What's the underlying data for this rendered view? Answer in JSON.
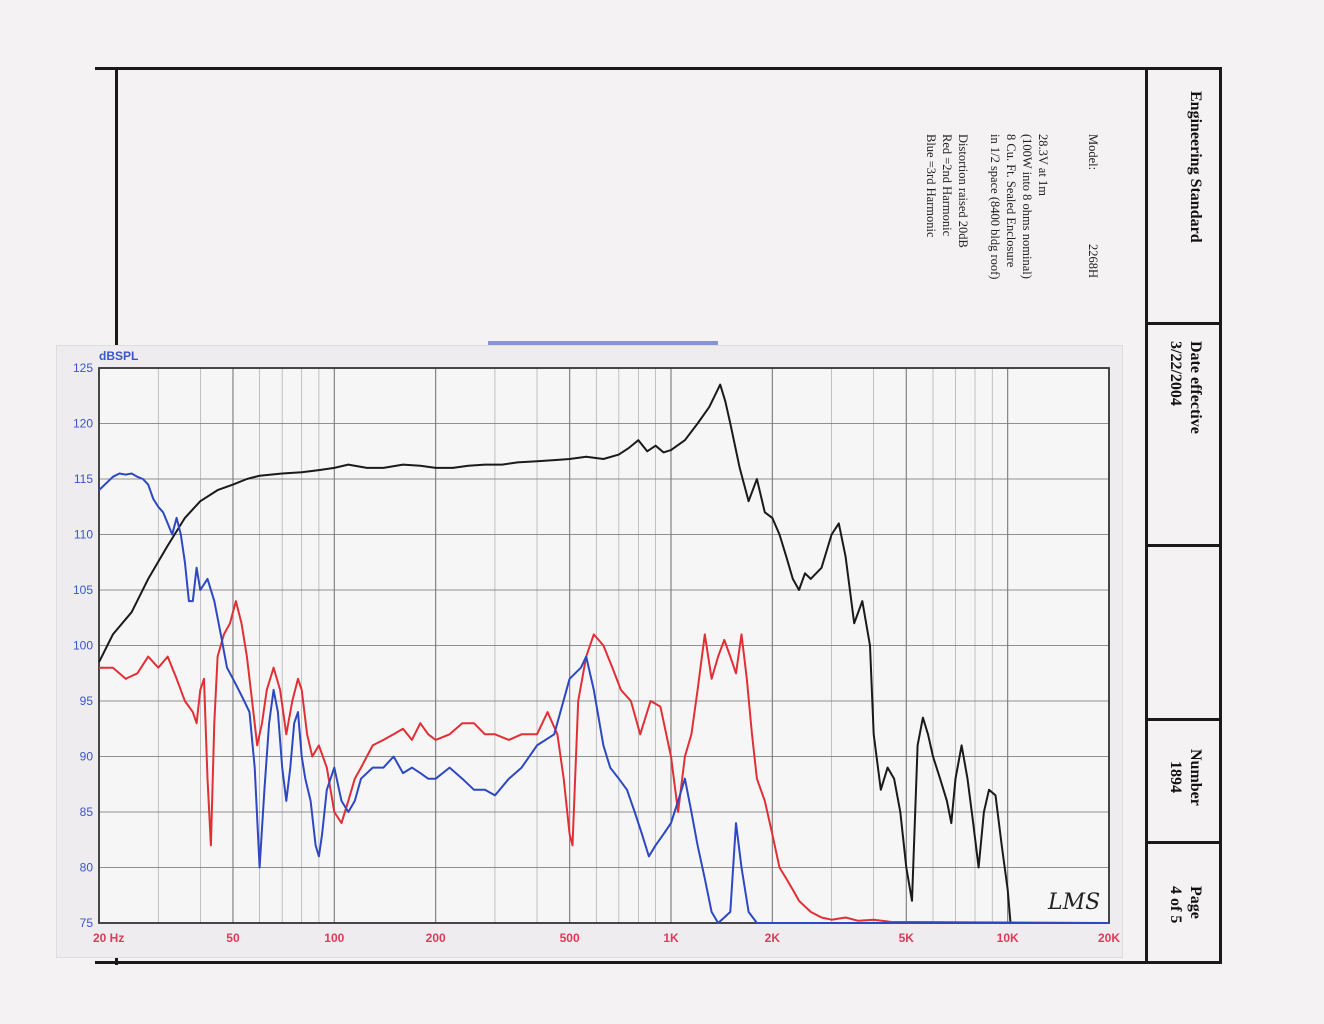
{
  "title_block": {
    "doc_type": "Engineering Standard",
    "date_label": "Date effective",
    "date_value": "3/22/2004",
    "number_label": "Number",
    "number_value": "1894",
    "page_label": "Page",
    "page_value": "4 of 5"
  },
  "notes": {
    "model_label": "Model:",
    "model_value": "2268H",
    "line1": "28.3V at 1m",
    "line2": "(100W into 8 ohms nominal)",
    "line3": "8 Cu. Ft. Sealed Enclosure",
    "line4": "in 1/2 space (8400 bldg roof)",
    "distortion": "Distortion raised 20dB",
    "red_legend": "Red =2nd Harmonic",
    "blue_legend": "Blue =3rd Harmonic"
  },
  "signature_text": "LMS",
  "colors": {
    "fundamental": "#1a1a1a",
    "second_harmonic": "#e03035",
    "third_harmonic": "#2d48c0",
    "axis_text": "#3a56c9",
    "grid": "#777777"
  },
  "chart_data": {
    "type": "line",
    "title": "",
    "ylabel": "dBSPL",
    "xlabel": "",
    "xscale": "log",
    "xlim": [
      20,
      20000
    ],
    "ylim": [
      75,
      125
    ],
    "x_tick_labels": [
      {
        "f": 20,
        "label": "20  Hz"
      },
      {
        "f": 50,
        "label": "50"
      },
      {
        "f": 100,
        "label": "100"
      },
      {
        "f": 200,
        "label": "200"
      },
      {
        "f": 500,
        "label": "500"
      },
      {
        "f": 1000,
        "label": "1K"
      },
      {
        "f": 2000,
        "label": "2K"
      },
      {
        "f": 5000,
        "label": "5K"
      },
      {
        "f": 10000,
        "label": "10K"
      },
      {
        "f": 20000,
        "label": "20K"
      }
    ],
    "y_ticks": [
      75,
      80,
      85,
      90,
      95,
      100,
      105,
      110,
      115,
      120,
      125
    ],
    "grid": true,
    "series": [
      {
        "key": "fundamental",
        "points": [
          [
            20,
            98.5
          ],
          [
            22,
            101
          ],
          [
            25,
            103
          ],
          [
            28,
            106
          ],
          [
            32,
            109
          ],
          [
            36,
            111.5
          ],
          [
            40,
            113
          ],
          [
            45,
            114
          ],
          [
            50,
            114.5
          ],
          [
            55,
            115
          ],
          [
            60,
            115.3
          ],
          [
            70,
            115.5
          ],
          [
            80,
            115.6
          ],
          [
            90,
            115.8
          ],
          [
            100,
            116
          ],
          [
            110,
            116.3
          ],
          [
            125,
            116
          ],
          [
            140,
            116
          ],
          [
            160,
            116.3
          ],
          [
            180,
            116.2
          ],
          [
            200,
            116
          ],
          [
            225,
            116
          ],
          [
            250,
            116.2
          ],
          [
            280,
            116.3
          ],
          [
            315,
            116.3
          ],
          [
            350,
            116.5
          ],
          [
            400,
            116.6
          ],
          [
            450,
            116.7
          ],
          [
            500,
            116.8
          ],
          [
            560,
            117
          ],
          [
            630,
            116.8
          ],
          [
            700,
            117.2
          ],
          [
            750,
            117.8
          ],
          [
            800,
            118.5
          ],
          [
            850,
            117.5
          ],
          [
            900,
            118
          ],
          [
            950,
            117.4
          ],
          [
            1000,
            117.6
          ],
          [
            1100,
            118.5
          ],
          [
            1200,
            120
          ],
          [
            1300,
            121.5
          ],
          [
            1400,
            123.5
          ],
          [
            1450,
            122
          ],
          [
            1500,
            120
          ],
          [
            1600,
            116
          ],
          [
            1700,
            113
          ],
          [
            1800,
            115
          ],
          [
            1900,
            112
          ],
          [
            2000,
            111.5
          ],
          [
            2100,
            110
          ],
          [
            2200,
            108
          ],
          [
            2300,
            106
          ],
          [
            2400,
            105
          ],
          [
            2500,
            106.5
          ],
          [
            2600,
            106
          ],
          [
            2800,
            107
          ],
          [
            3000,
            110
          ],
          [
            3150,
            111
          ],
          [
            3300,
            108
          ],
          [
            3500,
            102
          ],
          [
            3700,
            104
          ],
          [
            3900,
            100
          ],
          [
            4000,
            92
          ],
          [
            4200,
            87
          ],
          [
            4400,
            89
          ],
          [
            4600,
            88
          ],
          [
            4800,
            85
          ],
          [
            5000,
            80
          ],
          [
            5200,
            77
          ],
          [
            5400,
            91
          ],
          [
            5600,
            93.5
          ],
          [
            5800,
            92
          ],
          [
            6000,
            90
          ],
          [
            6300,
            88
          ],
          [
            6600,
            86
          ],
          [
            6800,
            84
          ],
          [
            7000,
            88
          ],
          [
            7300,
            91
          ],
          [
            7600,
            88
          ],
          [
            7900,
            84
          ],
          [
            8200,
            80
          ],
          [
            8500,
            85
          ],
          [
            8800,
            87
          ],
          [
            9200,
            86.5
          ],
          [
            9600,
            82
          ],
          [
            10000,
            78
          ],
          [
            10200,
            75
          ]
        ]
      },
      {
        "key": "second_harmonic",
        "points": [
          [
            20,
            98
          ],
          [
            22,
            98
          ],
          [
            24,
            97
          ],
          [
            26,
            97.5
          ],
          [
            28,
            99
          ],
          [
            30,
            98
          ],
          [
            32,
            99
          ],
          [
            34,
            97
          ],
          [
            36,
            95
          ],
          [
            38,
            94
          ],
          [
            39,
            93
          ],
          [
            40,
            96
          ],
          [
            41,
            97
          ],
          [
            42,
            88
          ],
          [
            43,
            82
          ],
          [
            44,
            93
          ],
          [
            45,
            99
          ],
          [
            47,
            101
          ],
          [
            49,
            102
          ],
          [
            51,
            104
          ],
          [
            53,
            102
          ],
          [
            55,
            99
          ],
          [
            57,
            95
          ],
          [
            59,
            91
          ],
          [
            61,
            93
          ],
          [
            63,
            96
          ],
          [
            66,
            98
          ],
          [
            69,
            96
          ],
          [
            72,
            92
          ],
          [
            75,
            95
          ],
          [
            78,
            97
          ],
          [
            80,
            96
          ],
          [
            83,
            92
          ],
          [
            86,
            90
          ],
          [
            90,
            91
          ],
          [
            95,
            89
          ],
          [
            100,
            85
          ],
          [
            105,
            84
          ],
          [
            110,
            86
          ],
          [
            115,
            88
          ],
          [
            120,
            89
          ],
          [
            130,
            91
          ],
          [
            140,
            91.5
          ],
          [
            150,
            92
          ],
          [
            160,
            92.5
          ],
          [
            170,
            91.5
          ],
          [
            180,
            93
          ],
          [
            190,
            92
          ],
          [
            200,
            91.5
          ],
          [
            220,
            92
          ],
          [
            240,
            93
          ],
          [
            260,
            93
          ],
          [
            280,
            92
          ],
          [
            300,
            92
          ],
          [
            330,
            91.5
          ],
          [
            360,
            92
          ],
          [
            400,
            92
          ],
          [
            430,
            94
          ],
          [
            460,
            92
          ],
          [
            480,
            88
          ],
          [
            500,
            83
          ],
          [
            510,
            82
          ],
          [
            530,
            95
          ],
          [
            560,
            99
          ],
          [
            590,
            101
          ],
          [
            630,
            100
          ],
          [
            670,
            98
          ],
          [
            710,
            96
          ],
          [
            760,
            95
          ],
          [
            810,
            92
          ],
          [
            870,
            95
          ],
          [
            930,
            94.5
          ],
          [
            1000,
            90
          ],
          [
            1050,
            85
          ],
          [
            1100,
            90
          ],
          [
            1150,
            92
          ],
          [
            1200,
            96
          ],
          [
            1260,
            101
          ],
          [
            1320,
            97
          ],
          [
            1380,
            99
          ],
          [
            1440,
            100.5
          ],
          [
            1500,
            99
          ],
          [
            1560,
            97.5
          ],
          [
            1620,
            101
          ],
          [
            1680,
            97
          ],
          [
            1740,
            92
          ],
          [
            1800,
            88
          ],
          [
            1900,
            86
          ],
          [
            2000,
            83
          ],
          [
            2100,
            80
          ],
          [
            2200,
            79
          ],
          [
            2300,
            78
          ],
          [
            2400,
            77
          ],
          [
            2600,
            76
          ],
          [
            2800,
            75.5
          ],
          [
            3000,
            75.3
          ],
          [
            3300,
            75.5
          ],
          [
            3600,
            75.2
          ],
          [
            4000,
            75.3
          ],
          [
            4500,
            75.1
          ],
          [
            20000,
            75
          ]
        ]
      },
      {
        "key": "third_harmonic",
        "points": [
          [
            20,
            114
          ],
          [
            21,
            114.6
          ],
          [
            22,
            115.2
          ],
          [
            23,
            115.5
          ],
          [
            24,
            115.4
          ],
          [
            25,
            115.5
          ],
          [
            26,
            115.2
          ],
          [
            27,
            115
          ],
          [
            28,
            114.5
          ],
          [
            29,
            113.2
          ],
          [
            30,
            112.5
          ],
          [
            31,
            112
          ],
          [
            32,
            111
          ],
          [
            33,
            110
          ],
          [
            34,
            111.5
          ],
          [
            35,
            110
          ],
          [
            36,
            107.5
          ],
          [
            37,
            104
          ],
          [
            38,
            104
          ],
          [
            39,
            107
          ],
          [
            40,
            105
          ],
          [
            42,
            106
          ],
          [
            44,
            104
          ],
          [
            46,
            101
          ],
          [
            48,
            98
          ],
          [
            50,
            97
          ],
          [
            52,
            96
          ],
          [
            54,
            95
          ],
          [
            56,
            94
          ],
          [
            58,
            89
          ],
          [
            60,
            80
          ],
          [
            62,
            87
          ],
          [
            64,
            93
          ],
          [
            66,
            96
          ],
          [
            68,
            94
          ],
          [
            70,
            89
          ],
          [
            72,
            86
          ],
          [
            74,
            89
          ],
          [
            76,
            93
          ],
          [
            78,
            94
          ],
          [
            80,
            90
          ],
          [
            82,
            88
          ],
          [
            85,
            86
          ],
          [
            88,
            82
          ],
          [
            90,
            81
          ],
          [
            92,
            83
          ],
          [
            95,
            87
          ],
          [
            100,
            89
          ],
          [
            105,
            86
          ],
          [
            110,
            85
          ],
          [
            115,
            86
          ],
          [
            120,
            88
          ],
          [
            130,
            89
          ],
          [
            140,
            89
          ],
          [
            150,
            90
          ],
          [
            160,
            88.5
          ],
          [
            170,
            89
          ],
          [
            180,
            88.5
          ],
          [
            190,
            88
          ],
          [
            200,
            88
          ],
          [
            220,
            89
          ],
          [
            240,
            88
          ],
          [
            260,
            87
          ],
          [
            280,
            87
          ],
          [
            300,
            86.5
          ],
          [
            330,
            88
          ],
          [
            360,
            89
          ],
          [
            400,
            91
          ],
          [
            450,
            92
          ],
          [
            500,
            97
          ],
          [
            540,
            98
          ],
          [
            560,
            99
          ],
          [
            590,
            96
          ],
          [
            630,
            91
          ],
          [
            660,
            89
          ],
          [
            700,
            88
          ],
          [
            740,
            87
          ],
          [
            780,
            85
          ],
          [
            820,
            83
          ],
          [
            860,
            81
          ],
          [
            900,
            82
          ],
          [
            950,
            83
          ],
          [
            1000,
            84
          ],
          [
            1050,
            86
          ],
          [
            1100,
            88
          ],
          [
            1150,
            85
          ],
          [
            1200,
            82
          ],
          [
            1260,
            79
          ],
          [
            1320,
            76
          ],
          [
            1380,
            75
          ],
          [
            1440,
            75.5
          ],
          [
            1500,
            76
          ],
          [
            1560,
            84
          ],
          [
            1620,
            80
          ],
          [
            1700,
            76
          ],
          [
            1800,
            75
          ],
          [
            2000,
            75
          ],
          [
            20000,
            75
          ]
        ]
      }
    ]
  }
}
